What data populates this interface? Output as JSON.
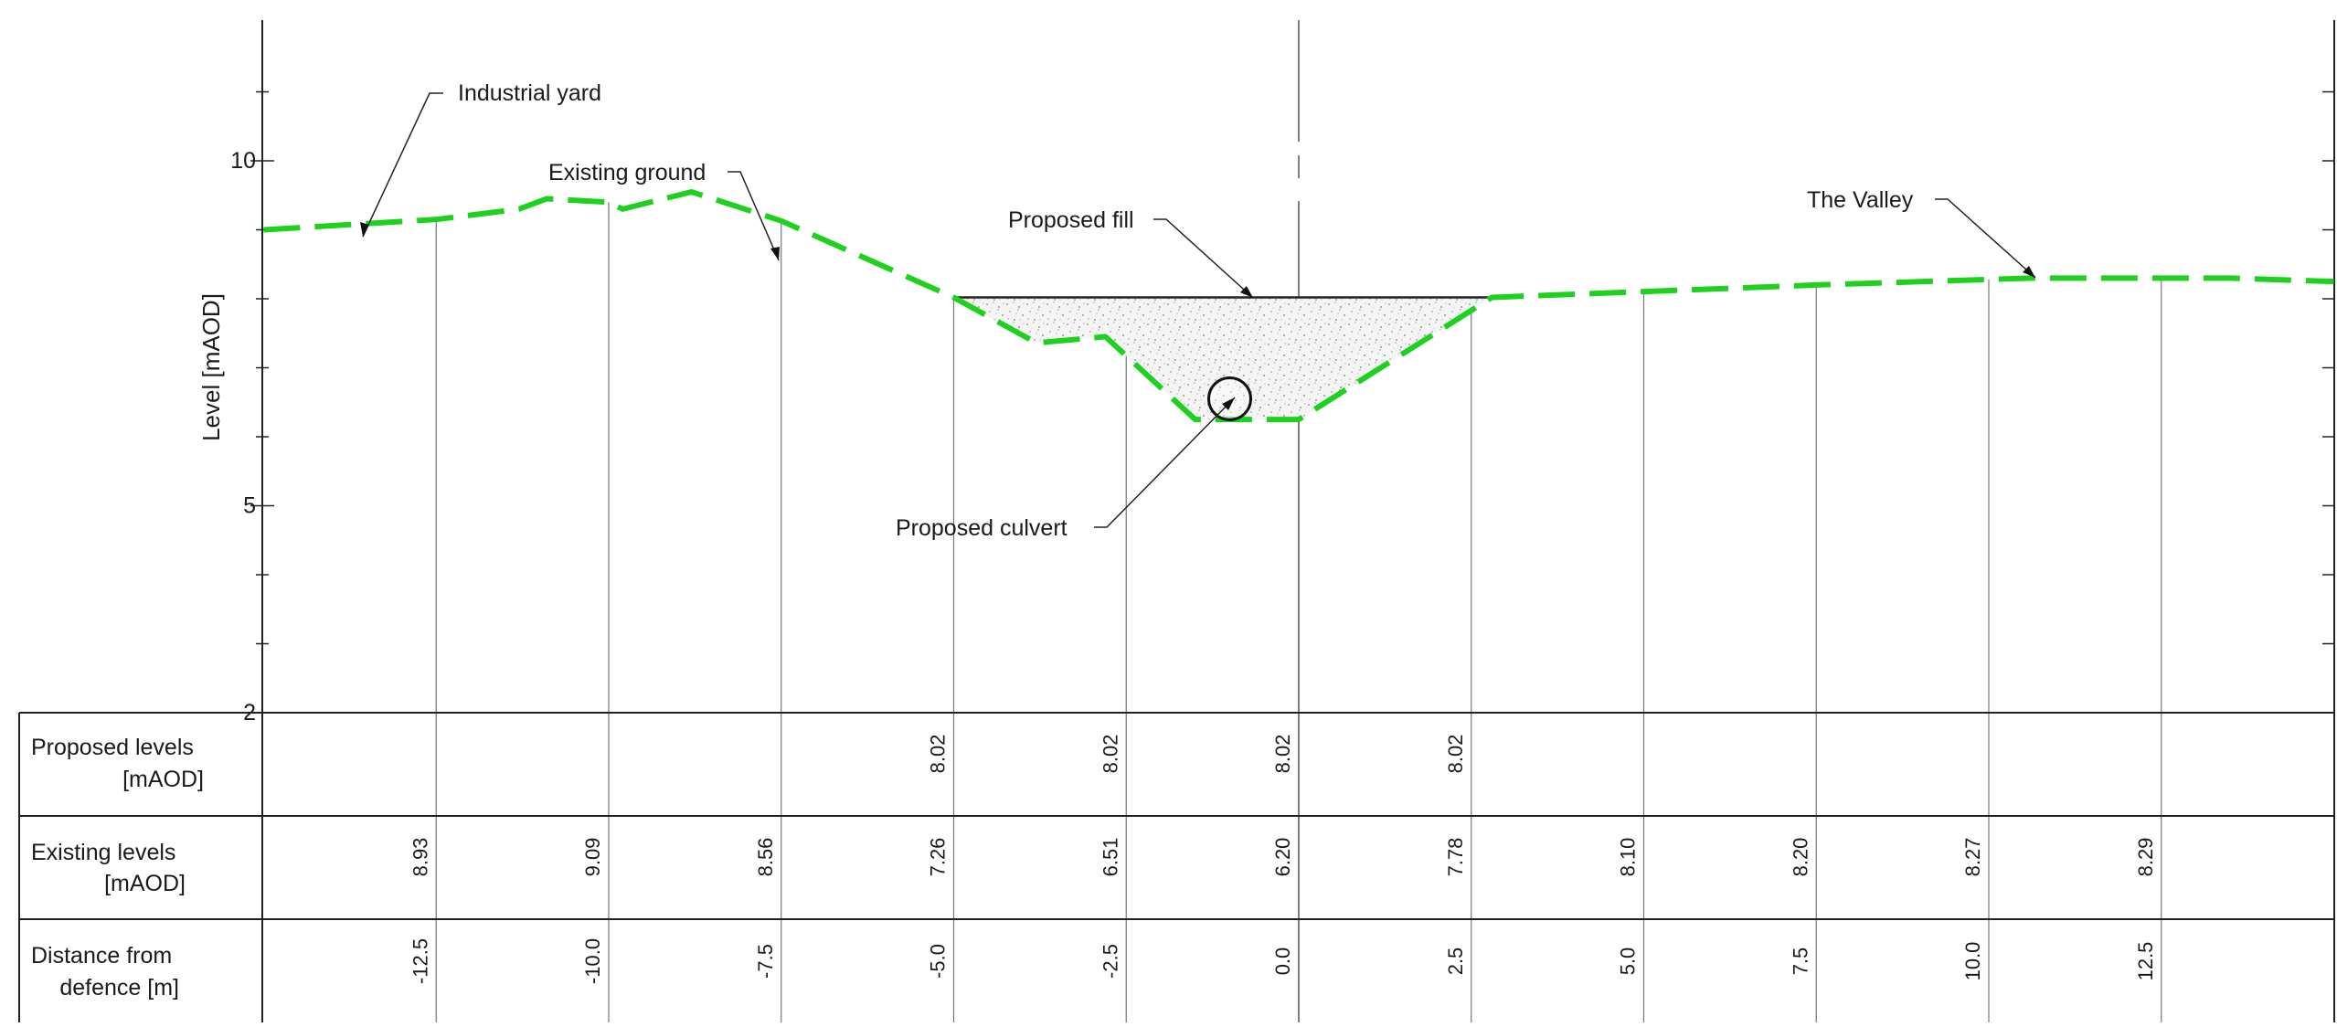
{
  "y_axis": {
    "label": "Level [mAOD]",
    "ticks": [
      {
        "value": 10,
        "label": "10"
      },
      {
        "value": 5,
        "label": "5"
      },
      {
        "value": 2,
        "label": "2"
      }
    ],
    "minor_ticks": [
      3,
      4,
      6,
      7,
      8,
      9,
      11
    ]
  },
  "annotations": {
    "industrial_yard": "Industrial yard",
    "existing_ground": "Existing ground",
    "proposed_fill": "Proposed fill",
    "the_valley": "The Valley",
    "proposed_culvert": "Proposed culvert"
  },
  "table": {
    "proposed_levels": {
      "label_line1": "Proposed levels",
      "label_line2": "[mAOD]"
    },
    "existing_levels": {
      "label_line1": "Existing levels",
      "label_line2": "[mAOD]"
    },
    "distance": {
      "label_line1": "Distance from",
      "label_line2": "defence [m]"
    }
  },
  "chart_data": {
    "type": "line",
    "x_unit": "Distance from defence [m]",
    "y_unit": "Level [mAOD]",
    "ylim": [
      2,
      12.5
    ],
    "stations": [
      {
        "distance": "-12.5",
        "existing": "8.93",
        "proposed": ""
      },
      {
        "distance": "-10.0",
        "existing": "9.09",
        "proposed": ""
      },
      {
        "distance": "-7.5",
        "existing": "8.56",
        "proposed": ""
      },
      {
        "distance": "-5.0",
        "existing": "7.26",
        "proposed": "8.02"
      },
      {
        "distance": "-2.5",
        "existing": "6.51",
        "proposed": "8.02"
      },
      {
        "distance": "0.0",
        "existing": "6.20",
        "proposed": "8.02"
      },
      {
        "distance": "2.5",
        "existing": "7.78",
        "proposed": "8.02"
      },
      {
        "distance": "5.0",
        "existing": "8.10",
        "proposed": ""
      },
      {
        "distance": "7.5",
        "existing": "8.20",
        "proposed": ""
      },
      {
        "distance": "10.0",
        "existing": "8.27",
        "proposed": ""
      },
      {
        "distance": "12.5",
        "existing": "8.29",
        "proposed": ""
      }
    ],
    "existing_ground_profile": [
      [
        -15.0,
        9.0
      ],
      [
        -12.5,
        9.15
      ],
      [
        -11.3,
        9.3
      ],
      [
        -10.9,
        9.45
      ],
      [
        -10.0,
        9.4
      ],
      [
        -9.8,
        9.3
      ],
      [
        -8.8,
        9.55
      ],
      [
        -7.5,
        9.13
      ],
      [
        -5.0,
        8.02
      ],
      [
        -3.8,
        7.36
      ],
      [
        -2.8,
        7.45
      ],
      [
        -1.5,
        6.25
      ],
      [
        0.0,
        6.25
      ],
      [
        2.8,
        8.02
      ],
      [
        7.5,
        8.2
      ],
      [
        10.6,
        8.3
      ],
      [
        13.5,
        8.3
      ],
      [
        15.0,
        8.25
      ]
    ],
    "proposed_fill_level": 8.02,
    "proposed_fill_extent": [
      -5.0,
      2.8
    ],
    "culvert": {
      "distance": -1.0,
      "level": 6.55
    },
    "series": [
      {
        "name": "Existing ground",
        "color": "#1fd11f"
      },
      {
        "name": "Proposed fill",
        "color": "#222222"
      }
    ]
  }
}
